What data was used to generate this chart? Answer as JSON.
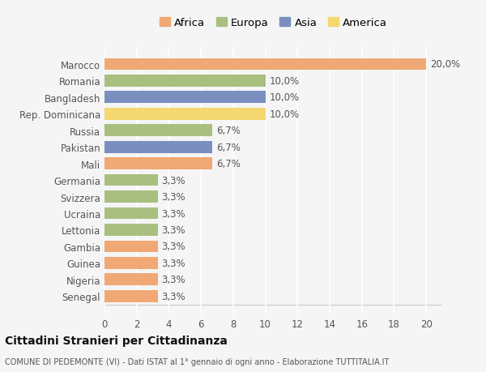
{
  "categories": [
    "Senegal",
    "Nigeria",
    "Guinea",
    "Gambia",
    "Lettonia",
    "Ucraina",
    "Svizzera",
    "Germania",
    "Mali",
    "Pakistan",
    "Russia",
    "Rep. Dominicana",
    "Bangladesh",
    "Romania",
    "Marocco"
  ],
  "values": [
    3.3,
    3.3,
    3.3,
    3.3,
    3.3,
    3.3,
    3.3,
    3.3,
    6.7,
    6.7,
    6.7,
    10.0,
    10.0,
    10.0,
    20.0
  ],
  "colors": [
    "#f0a875",
    "#f0a875",
    "#f0a875",
    "#f0a875",
    "#a8bf80",
    "#a8bf80",
    "#a8bf80",
    "#a8bf80",
    "#f0a875",
    "#7a8fc0",
    "#a8bf80",
    "#f5d870",
    "#7a8fc0",
    "#a8bf80",
    "#f0a875"
  ],
  "labels": [
    "3,3%",
    "3,3%",
    "3,3%",
    "3,3%",
    "3,3%",
    "3,3%",
    "3,3%",
    "3,3%",
    "6,7%",
    "6,7%",
    "6,7%",
    "10,0%",
    "10,0%",
    "10,0%",
    "20,0%"
  ],
  "legend": [
    {
      "label": "Africa",
      "color": "#f0a875"
    },
    {
      "label": "Europa",
      "color": "#a8bf80"
    },
    {
      "label": "Asia",
      "color": "#7a8fc0"
    },
    {
      "label": "America",
      "color": "#f5d870"
    }
  ],
  "xlim": [
    0,
    21
  ],
  "xticks": [
    0,
    2,
    4,
    6,
    8,
    10,
    12,
    14,
    16,
    18,
    20
  ],
  "title": "Cittadini Stranieri per Cittadinanza",
  "subtitle": "COMUNE DI PEDEMONTE (VI) - Dati ISTAT al 1° gennaio di ogni anno - Elaborazione TUTTITALIA.IT",
  "bg_color": "#f5f5f5",
  "grid_color": "#ffffff",
  "bar_height": 0.72,
  "label_fontsize": 8.5,
  "tick_fontsize": 8.5
}
